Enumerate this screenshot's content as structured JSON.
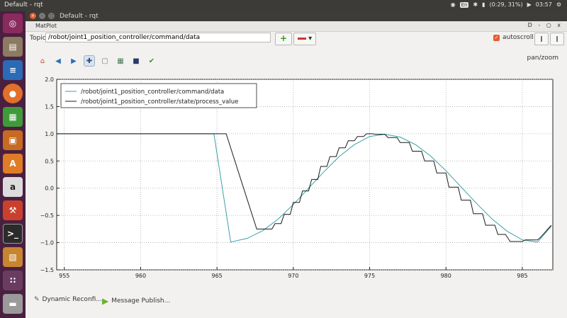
{
  "system_bar": {
    "title": "Default - rqt",
    "keyboard": "En",
    "battery": "(0:29, 31%)",
    "clock": "03:57"
  },
  "window": {
    "title": "Default - rqt",
    "dock_label": "MatPlot",
    "dock_controls": "D - ○ x"
  },
  "topic": {
    "label": "Topic",
    "value": "/robot/joint1_position_controller/command/data",
    "add": "+",
    "remove_caret": "▾"
  },
  "controls": {
    "autoscroll_label": "autoscroll",
    "mode_label": "pan/zoom"
  },
  "toolbar": {
    "icons": [
      "home-icon",
      "back-icon",
      "forward-icon",
      "pan-icon",
      "zoom-icon",
      "configure-icon",
      "save-icon",
      "edit-icon"
    ]
  },
  "plugins": [
    {
      "label": "Dynamic Reconfi...",
      "icon": "wrench-icon"
    },
    {
      "label": "Message Publish...",
      "icon": "play-icon"
    }
  ],
  "launcher": {
    "apps": [
      "ubuntu",
      "files",
      "writer",
      "firefox",
      "calc",
      "impress",
      "software",
      "amazon",
      "settings",
      "terminal",
      "rviz",
      "apps-grid",
      "drive"
    ]
  },
  "chart_data": {
    "type": "line",
    "xlim": [
      954.5,
      987
    ],
    "ylim": [
      -1.5,
      2.0
    ],
    "xticks": [
      955,
      960,
      965,
      970,
      975,
      980,
      985
    ],
    "yticks": [
      2.0,
      1.5,
      1.0,
      0.5,
      0.0,
      -0.5,
      -1.0,
      -1.5
    ],
    "ytick_labels": [
      "2.0",
      "1.5",
      "1.0",
      "0.5",
      "0.0",
      "−0.5",
      "−1.0",
      "−1.5"
    ],
    "grid": true,
    "legend": "top-left",
    "series": [
      {
        "name": "/robot/joint1_position_controller/command/data",
        "color": "#3aa0a8",
        "x": [
          954.5,
          964.8,
          965.9,
          967,
          968,
          969,
          970,
          971,
          972,
          973,
          974,
          975,
          976,
          977,
          978,
          979,
          980,
          981,
          982,
          983,
          984,
          985,
          986,
          986.9
        ],
        "y": [
          1.0,
          1.0,
          -0.99,
          -0.92,
          -0.78,
          -0.57,
          -0.3,
          0.0,
          0.3,
          0.58,
          0.8,
          0.95,
          0.99,
          0.94,
          0.8,
          0.59,
          0.32,
          0.02,
          -0.28,
          -0.56,
          -0.79,
          -0.95,
          -0.99,
          -0.7
        ]
      },
      {
        "name": "/robot/joint1_position_controller/state/process_value",
        "color": "#1a1a1a",
        "x": [
          954.5,
          965.6,
          967.6,
          968,
          968.6,
          968.8,
          969.2,
          969.4,
          969.8,
          970,
          970.4,
          970.6,
          971,
          971.2,
          971.6,
          971.8,
          972.2,
          972.4,
          972.8,
          973,
          973.4,
          973.6,
          974,
          974.2,
          974.6,
          974.8,
          975.2,
          975.4,
          976,
          976.2,
          976.8,
          977,
          977.6,
          977.8,
          978.4,
          978.6,
          979.2,
          979.4,
          980,
          980.2,
          980.8,
          981,
          981.6,
          981.8,
          982.4,
          982.6,
          983.2,
          983.4,
          983.9,
          984.2,
          985,
          985.2,
          986,
          986.2,
          986.9
        ],
        "y": [
          1.0,
          1.0,
          -0.75,
          -0.75,
          -0.75,
          -0.65,
          -0.65,
          -0.48,
          -0.48,
          -0.26,
          -0.26,
          -0.05,
          -0.05,
          0.16,
          0.16,
          0.4,
          0.4,
          0.58,
          0.58,
          0.74,
          0.74,
          0.87,
          0.87,
          0.95,
          0.95,
          1.0,
          1.0,
          0.99,
          0.99,
          0.93,
          0.93,
          0.84,
          0.84,
          0.68,
          0.68,
          0.5,
          0.5,
          0.28,
          0.28,
          0.02,
          0.02,
          -0.22,
          -0.22,
          -0.47,
          -0.47,
          -0.68,
          -0.68,
          -0.85,
          -0.85,
          -0.98,
          -0.98,
          -0.95,
          -0.95,
          -0.9,
          -0.68
        ]
      }
    ]
  }
}
